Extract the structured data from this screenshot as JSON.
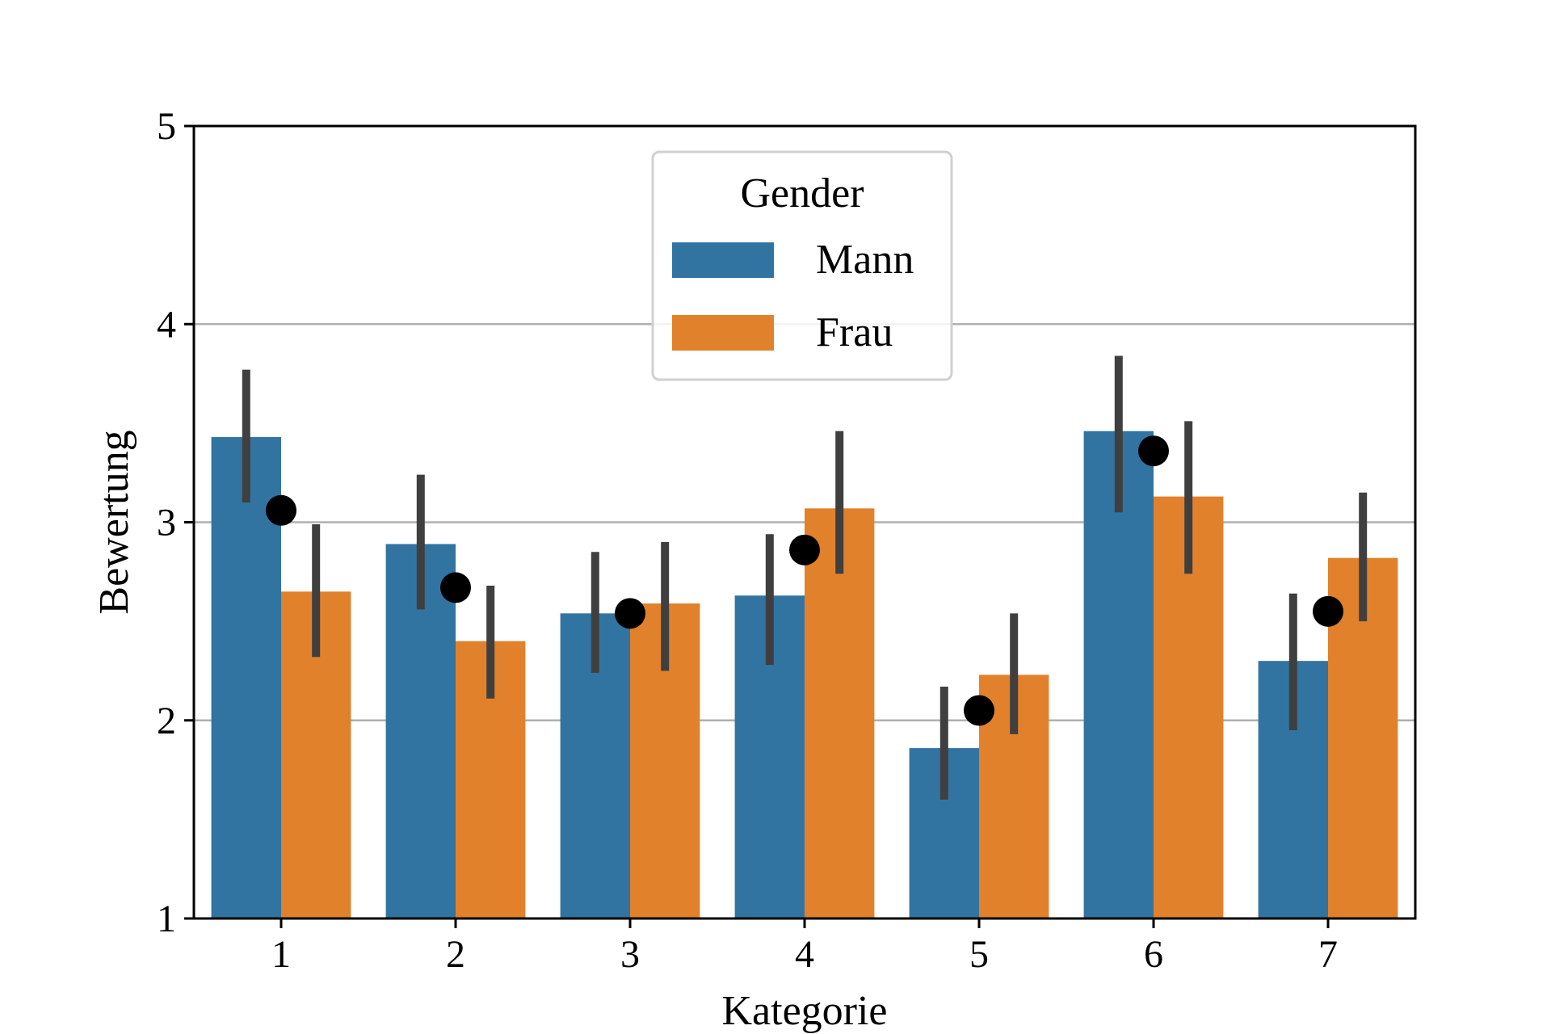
{
  "chart_data": {
    "type": "bar",
    "xlabel": "Kategorie",
    "ylabel": "Bewertung",
    "categories": [
      "1",
      "2",
      "3",
      "4",
      "5",
      "6",
      "7"
    ],
    "ylim": [
      1,
      5
    ],
    "yticks": [
      "1",
      "2",
      "3",
      "4",
      "5"
    ],
    "grid": "horizontal",
    "legend": {
      "title": "Gender",
      "placement": "top-center"
    },
    "series": [
      {
        "name": "Mann",
        "color": "#3274a1",
        "values": [
          3.43,
          2.89,
          2.54,
          2.63,
          1.86,
          3.46,
          2.3
        ],
        "error_low": [
          3.1,
          2.56,
          2.24,
          2.28,
          1.6,
          3.05,
          1.95
        ],
        "error_high": [
          3.77,
          3.24,
          2.85,
          2.94,
          2.17,
          3.84,
          2.64
        ]
      },
      {
        "name": "Frau",
        "color": "#e1812c",
        "values": [
          2.65,
          2.4,
          2.59,
          3.07,
          2.23,
          3.13,
          2.82
        ],
        "error_low": [
          2.32,
          2.11,
          2.25,
          2.74,
          1.93,
          2.74,
          2.5
        ],
        "error_high": [
          2.99,
          2.68,
          2.9,
          3.46,
          2.54,
          3.51,
          3.15
        ]
      }
    ],
    "points": {
      "color": "#000000",
      "values": [
        3.06,
        2.67,
        2.54,
        2.86,
        2.05,
        3.36,
        2.55
      ]
    },
    "errorbar_color": "#3f3f3f"
  }
}
